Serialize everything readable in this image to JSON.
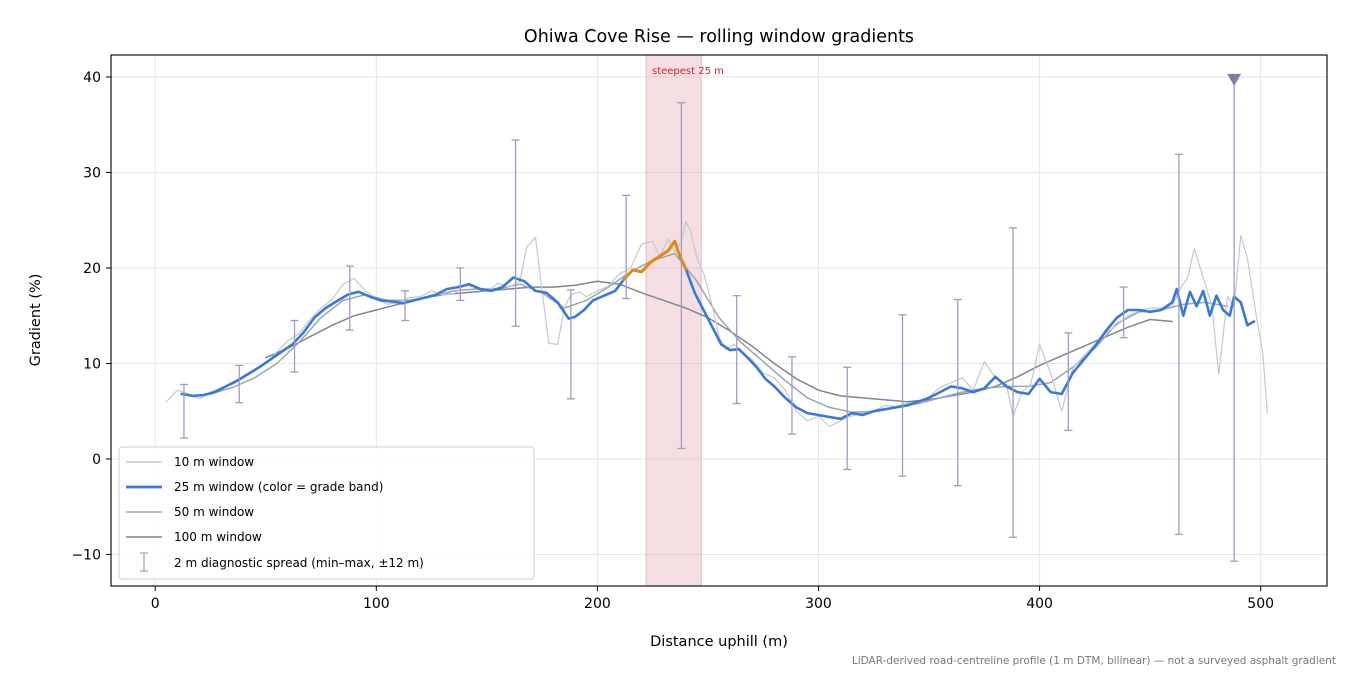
{
  "chart_data": {
    "type": "line",
    "title": "Ohiwa Cove Rise — rolling window gradients",
    "xlabel": "Distance uphill (m)",
    "ylabel": "Gradient (%)",
    "xlim": [
      -20,
      530
    ],
    "ylim": [
      -13.3,
      42.3
    ],
    "xticks": [
      0,
      100,
      200,
      300,
      400,
      500
    ],
    "yticks": [
      -10,
      0,
      10,
      20,
      30,
      40
    ],
    "xtick_labels": [
      "0",
      "100",
      "200",
      "300",
      "400",
      "500"
    ],
    "ytick_labels": [
      "−10",
      "0",
      "10",
      "20",
      "30",
      "40"
    ],
    "grid": true,
    "legend_position": "lower-left",
    "footnote": "LiDAR-derived road-centreline profile (1 m DTM, bilinear) — not a surveyed asphalt gradient",
    "highlight_band": {
      "x_start": 222,
      "x_end": 247,
      "label": "steepest 25 m",
      "color": "#e0a0a8"
    },
    "marker": {
      "x": 488,
      "y": 39.8,
      "color": "#8878a8"
    },
    "series": [
      {
        "name": "10 m window",
        "color": "#c2c8d2",
        "width": 1.2,
        "x": [
          5,
          10,
          15,
          20,
          25,
          30,
          35,
          40,
          45,
          50,
          55,
          60,
          65,
          70,
          75,
          80,
          85,
          90,
          95,
          100,
          105,
          110,
          115,
          120,
          125,
          130,
          135,
          140,
          145,
          150,
          155,
          160,
          165,
          168,
          172,
          175,
          178,
          182,
          185,
          188,
          192,
          195,
          200,
          205,
          210,
          215,
          220,
          225,
          228,
          232,
          235,
          238,
          240,
          242,
          245,
          248,
          252,
          255,
          258,
          262,
          266,
          270,
          275,
          280,
          285,
          290,
          295,
          300,
          305,
          310,
          315,
          320,
          325,
          330,
          335,
          340,
          345,
          350,
          355,
          360,
          365,
          370,
          375,
          380,
          385,
          388,
          392,
          396,
          400,
          405,
          410,
          415,
          420,
          425,
          430,
          435,
          440,
          445,
          450,
          455,
          460,
          464,
          467,
          470,
          474,
          478,
          481,
          485,
          488,
          491,
          494,
          498,
          501,
          503
        ],
        "y": [
          6.0,
          7.2,
          6.8,
          6.3,
          7.0,
          7.5,
          7.8,
          8.5,
          9.2,
          10.0,
          11.2,
          12.4,
          13.1,
          14.6,
          15.8,
          16.7,
          18.3,
          18.9,
          17.6,
          16.8,
          16.2,
          16.4,
          16.9,
          17.0,
          17.6,
          17.2,
          17.3,
          18.2,
          18.0,
          17.5,
          18.4,
          18.0,
          18.6,
          22.2,
          23.2,
          17.6,
          12.1,
          12.0,
          15.8,
          17.2,
          17.5,
          17.0,
          17.6,
          18.1,
          19.4,
          20.0,
          22.5,
          22.8,
          21.2,
          23.0,
          21.6,
          22.8,
          24.8,
          24.0,
          21.0,
          19.5,
          16.0,
          12.8,
          11.5,
          12.0,
          11.0,
          10.4,
          9.0,
          8.5,
          7.2,
          5.0,
          4.0,
          4.5,
          3.4,
          4.0,
          4.5,
          4.8,
          5.0,
          5.6,
          5.5,
          5.8,
          6.0,
          6.5,
          7.5,
          8.0,
          8.5,
          7.2,
          10.2,
          8.5,
          7.8,
          4.5,
          7.0,
          7.8,
          12.0,
          9.0,
          5.0,
          9.5,
          10.8,
          12.0,
          13.2,
          14.0,
          15.0,
          15.5,
          15.8,
          15.8,
          16.0,
          18.0,
          19.0,
          22.0,
          19.0,
          16.0,
          8.9,
          17.0,
          16.0,
          23.4,
          21.0,
          15.0,
          11.0,
          4.8
        ]
      },
      {
        "name": "25 m window (color = grade band)",
        "color": "#3a78d8",
        "width": 2.6,
        "emphasis_color": "#e08a10",
        "x": [
          12,
          17,
          22,
          27,
          32,
          37,
          42,
          47,
          52,
          57,
          62,
          67,
          72,
          77,
          82,
          87,
          92,
          97,
          102,
          107,
          112,
          117,
          122,
          127,
          132,
          137,
          142,
          147,
          152,
          157,
          162,
          167,
          172,
          177,
          182,
          187,
          190,
          194,
          198,
          203,
          208,
          212,
          216,
          220,
          224,
          228,
          232,
          235,
          237,
          240,
          244,
          248,
          252,
          256,
          260,
          264,
          268,
          272,
          276,
          280,
          285,
          290,
          295,
          300,
          305,
          310,
          315,
          320,
          325,
          330,
          335,
          340,
          345,
          350,
          355,
          360,
          365,
          370,
          375,
          380,
          385,
          390,
          395,
          400,
          405,
          410,
          415,
          420,
          425,
          430,
          435,
          440,
          445,
          450,
          455,
          460,
          462,
          465,
          468,
          471,
          474,
          477,
          480,
          483,
          486,
          488,
          491,
          494,
          497
        ],
        "y": [
          6.8,
          6.6,
          6.7,
          7.0,
          7.6,
          8.2,
          8.9,
          9.6,
          10.4,
          11.2,
          12.0,
          13.2,
          14.8,
          15.8,
          16.5,
          17.2,
          17.5,
          17.0,
          16.6,
          16.5,
          16.3,
          16.6,
          16.9,
          17.2,
          17.8,
          18.0,
          18.3,
          17.8,
          17.6,
          18.0,
          19.0,
          18.6,
          17.6,
          17.4,
          16.4,
          14.7,
          14.9,
          15.6,
          16.6,
          17.1,
          17.6,
          18.8,
          19.8,
          19.6,
          20.6,
          21.2,
          21.8,
          22.8,
          21.4,
          19.9,
          17.4,
          15.6,
          13.8,
          12.0,
          11.4,
          11.5,
          10.6,
          9.6,
          8.4,
          7.6,
          6.4,
          5.4,
          4.8,
          4.6,
          4.4,
          4.2,
          4.8,
          4.6,
          5.0,
          5.2,
          5.4,
          5.6,
          6.0,
          6.4,
          7.0,
          7.6,
          7.4,
          7.0,
          7.4,
          8.6,
          7.6,
          7.0,
          6.8,
          8.4,
          7.0,
          6.8,
          9.0,
          10.4,
          11.8,
          13.4,
          14.8,
          15.6,
          15.6,
          15.4,
          15.6,
          16.4,
          17.8,
          15.0,
          17.5,
          16.0,
          17.6,
          15.0,
          17.1,
          15.6,
          15.0,
          17.0,
          16.4,
          14.0,
          14.4
        ]
      },
      {
        "name": "50 m window",
        "color": "#9aa5b4",
        "width": 1.5,
        "x": [
          25,
          35,
          45,
          55,
          65,
          75,
          85,
          95,
          105,
          115,
          125,
          135,
          145,
          155,
          165,
          175,
          185,
          195,
          205,
          215,
          225,
          235,
          245,
          255,
          265,
          275,
          285,
          295,
          305,
          315,
          325,
          335,
          345,
          355,
          365,
          375,
          385,
          395,
          405,
          415,
          425,
          435,
          445,
          455,
          465,
          475,
          485
        ],
        "y": [
          6.8,
          7.5,
          8.5,
          10.0,
          12.2,
          14.8,
          16.6,
          17.2,
          16.6,
          16.6,
          17.0,
          17.6,
          17.8,
          17.8,
          18.3,
          17.4,
          15.8,
          16.6,
          18.0,
          19.6,
          20.8,
          21.5,
          18.6,
          14.8,
          12.2,
          10.2,
          8.2,
          6.4,
          5.4,
          4.9,
          5.0,
          5.4,
          5.8,
          6.4,
          7.0,
          7.4,
          7.6,
          7.6,
          8.0,
          9.6,
          11.6,
          14.2,
          15.4,
          15.6,
          16.2,
          16.4,
          16.0
        ]
      },
      {
        "name": "100 m window",
        "color": "#7d8594",
        "width": 1.5,
        "x": [
          50,
          60,
          70,
          80,
          90,
          100,
          110,
          120,
          130,
          140,
          150,
          160,
          170,
          180,
          190,
          200,
          210,
          220,
          230,
          240,
          250,
          260,
          270,
          280,
          290,
          300,
          310,
          320,
          330,
          340,
          350,
          360,
          370,
          380,
          390,
          400,
          410,
          420,
          430,
          440,
          450,
          460
        ],
        "y": [
          10.6,
          11.6,
          12.8,
          14.0,
          15.0,
          15.6,
          16.2,
          16.8,
          17.2,
          17.4,
          17.6,
          17.8,
          18.0,
          18.0,
          18.2,
          18.6,
          18.3,
          17.4,
          16.6,
          15.8,
          14.8,
          13.4,
          11.8,
          10.0,
          8.4,
          7.2,
          6.6,
          6.4,
          6.2,
          6.0,
          6.2,
          6.6,
          7.0,
          7.6,
          8.6,
          9.8,
          10.8,
          11.8,
          12.8,
          13.8,
          14.6,
          14.4
        ]
      }
    ],
    "diagnostic": {
      "name": "2 m diagnostic spread (min–max, ±12 m)",
      "color": "#a09cc0",
      "points": [
        {
          "x": 13,
          "low": 2.2,
          "high": 7.8
        },
        {
          "x": 38,
          "low": 5.9,
          "high": 9.8
        },
        {
          "x": 63,
          "low": 9.1,
          "high": 14.5
        },
        {
          "x": 88,
          "low": 13.5,
          "high": 20.2
        },
        {
          "x": 113,
          "low": 14.5,
          "high": 17.6
        },
        {
          "x": 138,
          "low": 16.6,
          "high": 20.0
        },
        {
          "x": 163,
          "low": 13.9,
          "high": 33.4
        },
        {
          "x": 188,
          "low": 6.3,
          "high": 17.7
        },
        {
          "x": 213,
          "low": 16.8,
          "high": 27.6
        },
        {
          "x": 238,
          "low": 1.1,
          "high": 37.3
        },
        {
          "x": 263,
          "low": 5.8,
          "high": 17.1
        },
        {
          "x": 288,
          "low": 2.6,
          "high": 10.7
        },
        {
          "x": 313,
          "low": -1.1,
          "high": 9.6
        },
        {
          "x": 338,
          "low": -1.8,
          "high": 15.1
        },
        {
          "x": 363,
          "low": -2.8,
          "high": 16.7
        },
        {
          "x": 388,
          "low": -8.2,
          "high": 24.2
        },
        {
          "x": 413,
          "low": 3.0,
          "high": 13.2
        },
        {
          "x": 438,
          "low": 12.7,
          "high": 18.0
        },
        {
          "x": 463,
          "low": -7.9,
          "high": 31.9
        },
        {
          "x": 488,
          "low": -10.7,
          "high": 39.8
        }
      ]
    }
  }
}
